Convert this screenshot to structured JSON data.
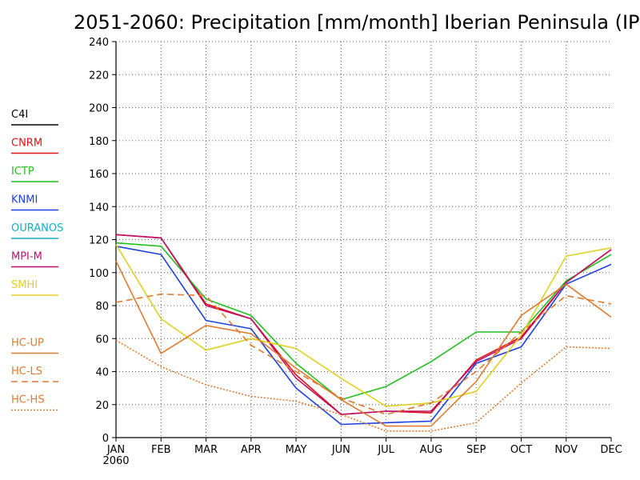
{
  "title": "2051-2060: Precipitation [mm/month] Iberian Peninsula (IP",
  "chart_data": {
    "type": "line",
    "title": "2051-2060: Precipitation [mm/month] Iberian Peninsula (IP",
    "xlabel": "",
    "ylabel": "",
    "categories": [
      "JAN",
      "FEB",
      "MAR",
      "APR",
      "MAY",
      "JUN",
      "JUL",
      "AUG",
      "SEP",
      "OCT",
      "NOV",
      "DEC"
    ],
    "x_sub_label": "2060",
    "ylim": [
      0,
      240
    ],
    "yticks": [
      0,
      20,
      40,
      60,
      80,
      100,
      120,
      140,
      160,
      180,
      200,
      220,
      240
    ],
    "grid": true,
    "legend_position": "left",
    "series": [
      {
        "name": "C4I",
        "color": "#000000",
        "dash": "solid",
        "values": [
          null,
          null,
          null,
          null,
          null,
          null,
          null,
          null,
          null,
          null,
          null,
          null
        ]
      },
      {
        "name": "CNRM",
        "color": "#e01010",
        "dash": "solid",
        "values": [
          123,
          121,
          81,
          72,
          38,
          14,
          16,
          15,
          47,
          61,
          94,
          114
        ]
      },
      {
        "name": "ICTP",
        "color": "#20c020",
        "dash": "solid",
        "values": [
          118,
          116,
          84,
          74,
          45,
          23,
          31,
          46,
          64,
          64,
          95,
          111
        ]
      },
      {
        "name": "KNMI",
        "color": "#1e40e0",
        "dash": "solid",
        "values": [
          116,
          111,
          71,
          66,
          30,
          8,
          9,
          10,
          45,
          55,
          93,
          105
        ]
      },
      {
        "name": "OURANOS",
        "color": "#10b0c0",
        "dash": "solid",
        "values": [
          null,
          null,
          null,
          null,
          null,
          null,
          null,
          null,
          null,
          null,
          null,
          null
        ]
      },
      {
        "name": "MPI-M",
        "color": "#c0106a",
        "dash": "solid",
        "values": [
          123,
          121,
          80,
          72,
          36,
          14,
          16,
          16,
          46,
          60,
          94,
          114
        ]
      },
      {
        "name": "SMHI",
        "color": "#e0d020",
        "dash": "solid",
        "values": [
          117,
          72,
          53,
          60,
          54,
          36,
          19,
          21,
          28,
          62,
          110,
          115
        ]
      },
      {
        "name": "HC-UP",
        "color": "#e07a2e",
        "dash": "solid",
        "values": [
          107,
          51,
          68,
          63,
          42,
          23,
          7,
          7,
          34,
          74,
          93,
          73
        ]
      },
      {
        "name": "HC-LS",
        "color": "#e07a2e",
        "dash": "dashed",
        "values": [
          82,
          87,
          86,
          56,
          40,
          24,
          14,
          21,
          40,
          64,
          86,
          81
        ]
      },
      {
        "name": "HC-HS",
        "color": "#e07a2e",
        "dash": "dotted",
        "values": [
          59,
          43,
          32,
          25,
          22,
          14,
          4,
          4,
          9,
          33,
          55,
          54
        ]
      }
    ]
  }
}
